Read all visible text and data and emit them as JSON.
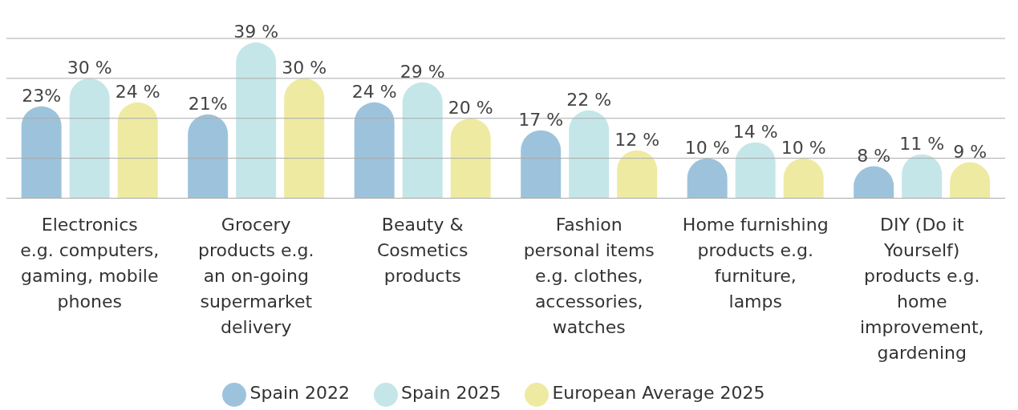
{
  "chart_data": {
    "type": "bar",
    "categories": [
      "Electronics e.g. computers, gaming, mobile phones",
      "Grocery products e.g. an on-going supermarket delivery",
      "Beauty & Cosmetics products",
      "Fashion personal items e.g. clothes, accessories, watches",
      "Home furnishing products e.g. furniture, lamps",
      "DIY (Do it Yourself) products e.g. home improvement, gardening"
    ],
    "series": [
      {
        "name": "Spain 2022",
        "color": "#9dc3dc",
        "values": [
          23,
          21,
          24,
          17,
          10,
          8
        ],
        "value_labels": [
          "23%",
          "21%",
          "24 %",
          "17 %",
          "10 %",
          "8 %"
        ]
      },
      {
        "name": "Spain 2025",
        "color": "#c5e6e8",
        "values": [
          30,
          39,
          29,
          22,
          14,
          11
        ],
        "value_labels": [
          "30 %",
          "39 %",
          "29 %",
          "22 %",
          "14 %",
          "11 %"
        ]
      },
      {
        "name": "European Average 2025",
        "color": "#eeeaa2",
        "values": [
          24,
          30,
          20,
          12,
          10,
          9
        ],
        "value_labels": [
          "24 %",
          "30 %",
          "20 %",
          "12 %",
          "10 %",
          "9 %"
        ]
      }
    ],
    "ylim": [
      0,
      40
    ],
    "yticks": [
      {
        "value": 0,
        "label": null
      },
      {
        "value": 10,
        "label": null
      },
      {
        "value": 20,
        "label": null
      },
      {
        "value": 30,
        "label": null
      },
      {
        "value": 40,
        "label": null
      }
    ],
    "grid": "y",
    "tick_labels": "x",
    "legend": "bottom"
  }
}
